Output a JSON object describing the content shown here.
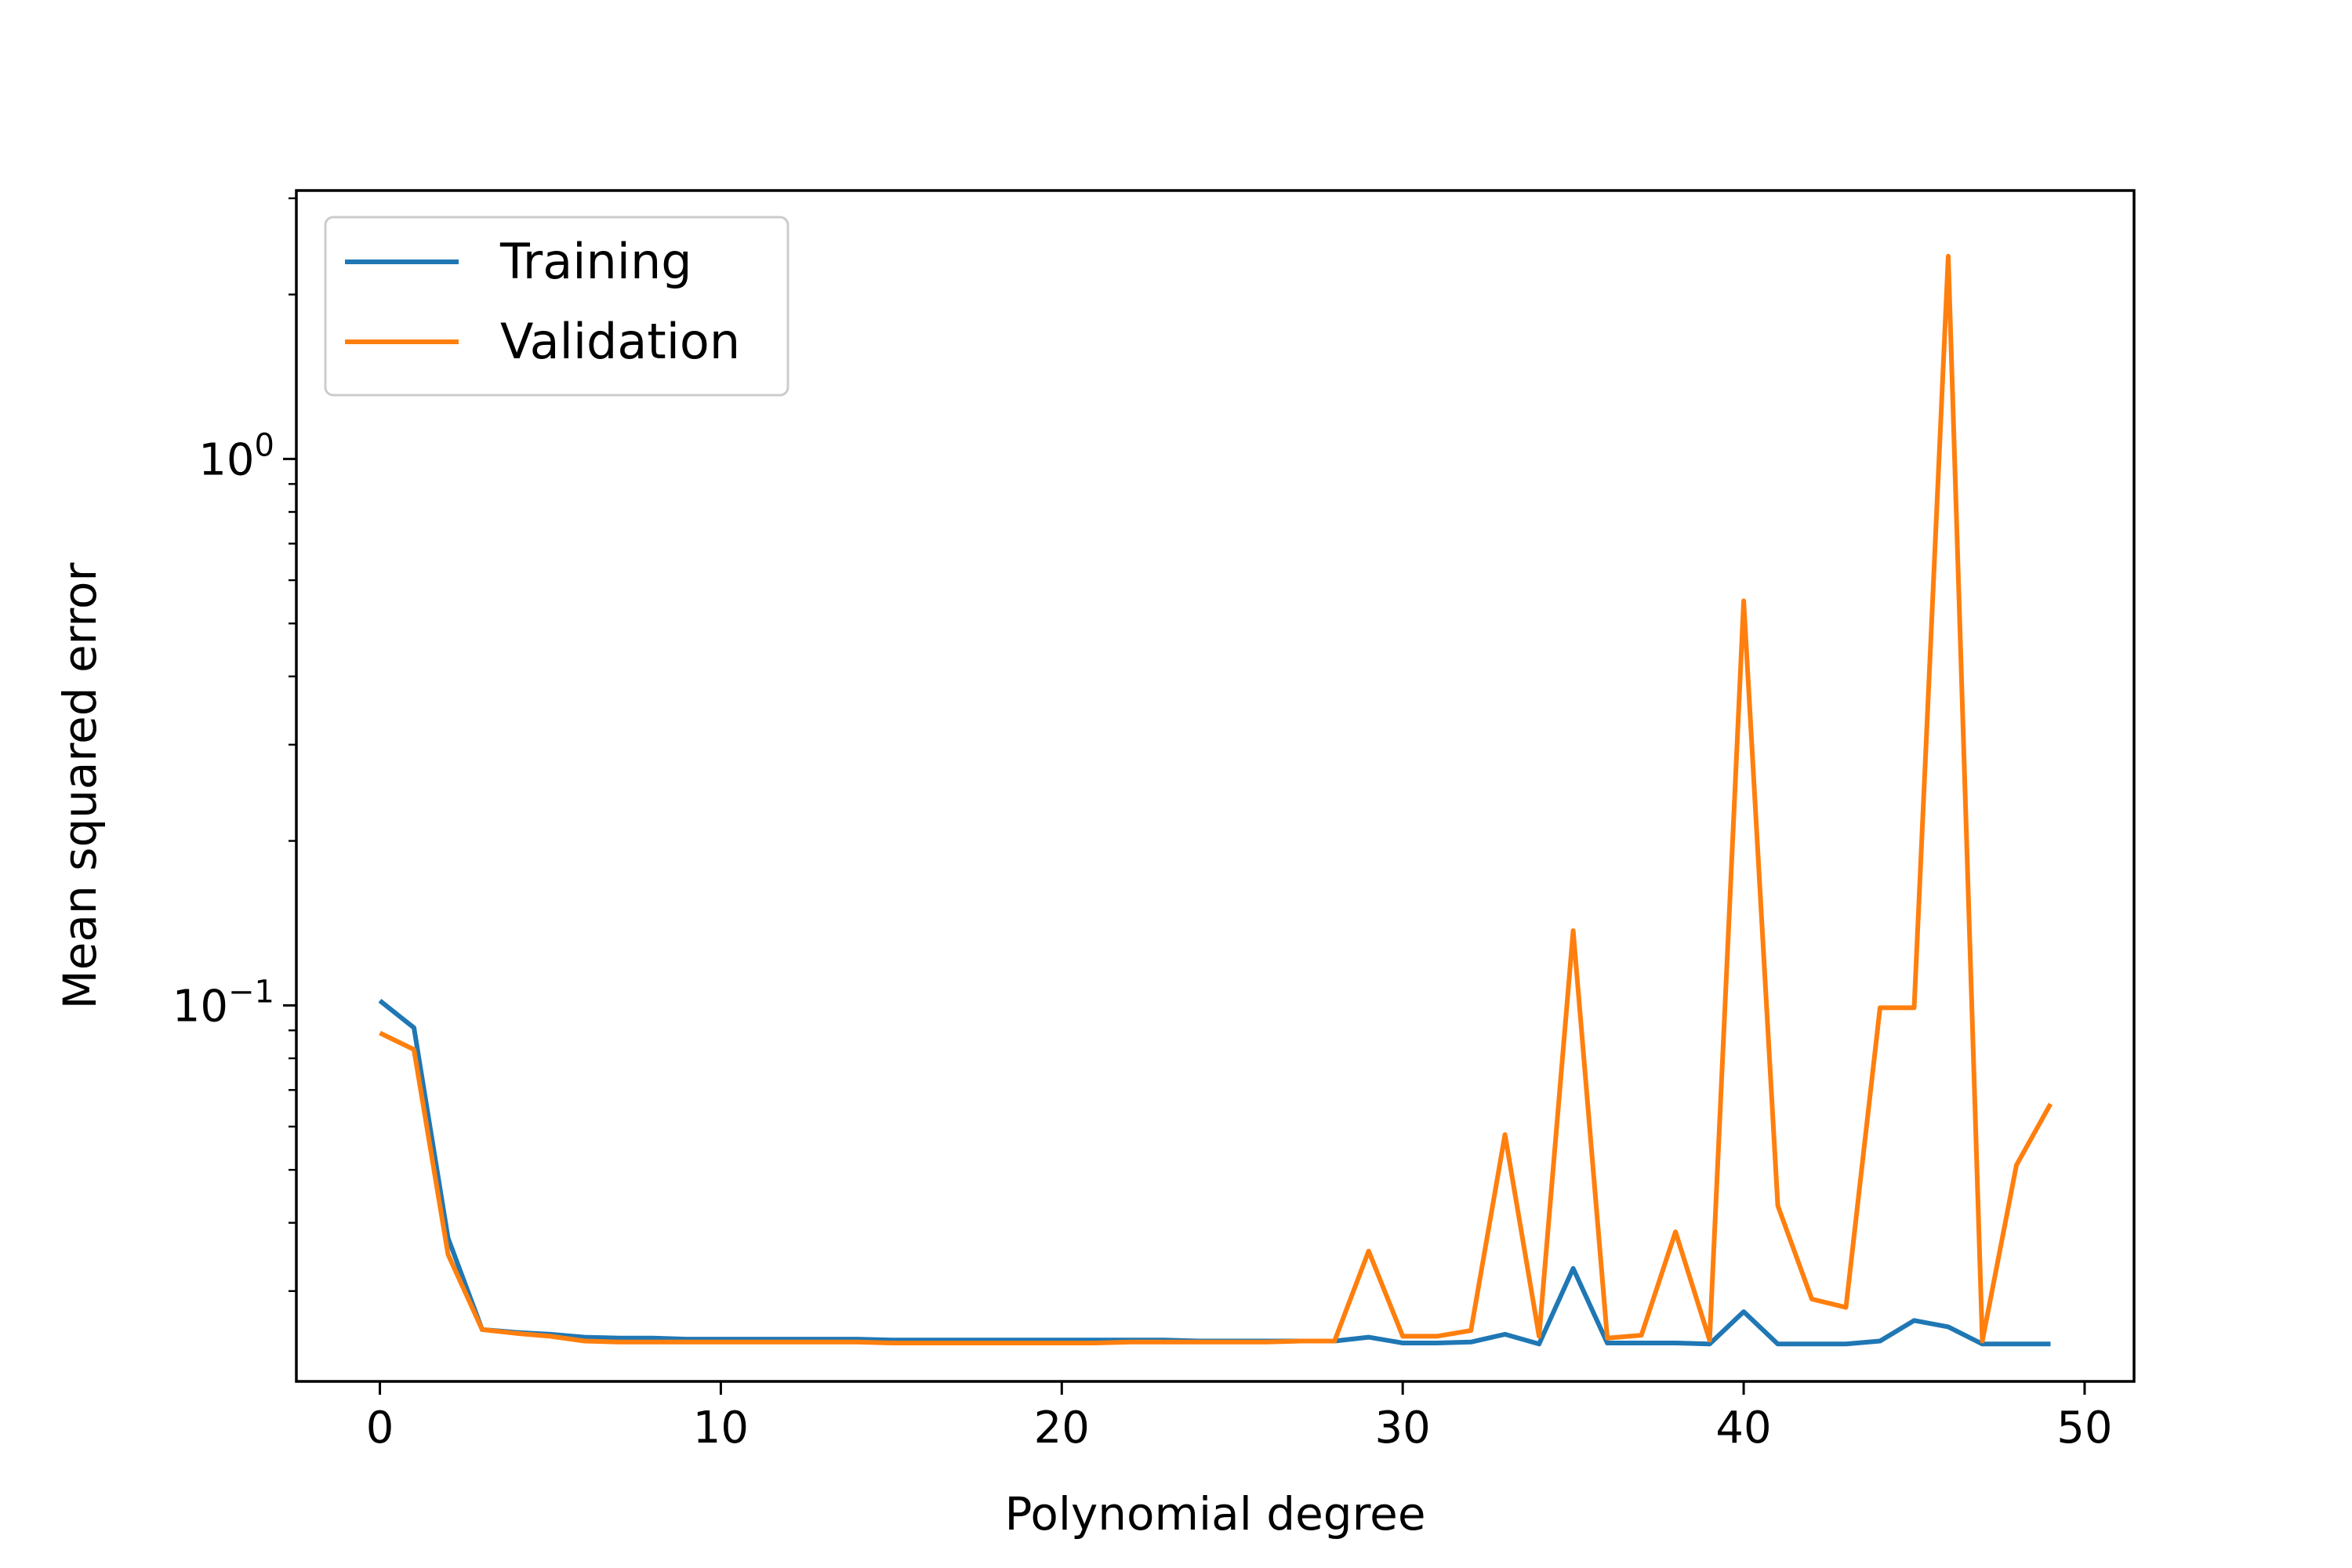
{
  "chart_data": {
    "type": "line",
    "title": "",
    "xlabel": "Polynomial degree",
    "ylabel": "Mean squared error",
    "yscale": "log",
    "xlim": [
      -2.45,
      51.45
    ],
    "ylim": [
      0.0205,
      3.1
    ],
    "x_ticks": [
      0,
      10,
      20,
      30,
      40,
      50
    ],
    "x_tick_labels": [
      "0",
      "10",
      "20",
      "30",
      "40",
      "50"
    ],
    "y_major_ticks": [
      0.1,
      1
    ],
    "y_tick_labels": [
      {
        "value": 0.1,
        "base": "10",
        "exp": "−1"
      },
      {
        "value": 1,
        "base": "10",
        "exp": "0"
      }
    ],
    "legend": {
      "placement": "upper-left"
    },
    "grid": false,
    "x": [
      0,
      1,
      2,
      3,
      4,
      5,
      6,
      7,
      8,
      9,
      10,
      11,
      12,
      13,
      14,
      15,
      16,
      17,
      18,
      19,
      20,
      21,
      22,
      23,
      24,
      25,
      26,
      27,
      28,
      29,
      30,
      31,
      32,
      33,
      34,
      35,
      36,
      37,
      38,
      39,
      40,
      41,
      42,
      43,
      44,
      45,
      46,
      47,
      48,
      49
    ],
    "series": [
      {
        "name": "Training",
        "color": "#1f77b4",
        "values": [
          0.102,
          0.091,
          0.0375,
          0.0255,
          0.0252,
          0.025,
          0.0247,
          0.0246,
          0.0246,
          0.0245,
          0.0245,
          0.0245,
          0.0245,
          0.0245,
          0.0245,
          0.0244,
          0.0244,
          0.0244,
          0.0244,
          0.0244,
          0.0244,
          0.0244,
          0.0244,
          0.0244,
          0.0243,
          0.0243,
          0.0243,
          0.0243,
          0.0243,
          0.0247,
          0.0241,
          0.0241,
          0.0242,
          0.025,
          0.024,
          0.033,
          0.0241,
          0.0241,
          0.0241,
          0.024,
          0.0275,
          0.024,
          0.024,
          0.024,
          0.0243,
          0.0265,
          0.0258,
          0.024,
          0.024,
          0.024
        ]
      },
      {
        "name": "Validation",
        "color": "#ff7f0e",
        "values": [
          0.089,
          0.083,
          0.035,
          0.0255,
          0.0251,
          0.0248,
          0.0243,
          0.0242,
          0.0242,
          0.0242,
          0.0242,
          0.0242,
          0.0242,
          0.0242,
          0.0242,
          0.0241,
          0.0241,
          0.0241,
          0.0241,
          0.0241,
          0.0241,
          0.0241,
          0.0242,
          0.0242,
          0.0242,
          0.0242,
          0.0242,
          0.0243,
          0.0243,
          0.0355,
          0.0248,
          0.0248,
          0.0254,
          0.058,
          0.0248,
          0.137,
          0.0246,
          0.0249,
          0.0385,
          0.0244,
          0.55,
          0.043,
          0.029,
          0.028,
          0.099,
          0.099,
          2.35,
          0.0243,
          0.051,
          0.066
        ]
      }
    ]
  }
}
